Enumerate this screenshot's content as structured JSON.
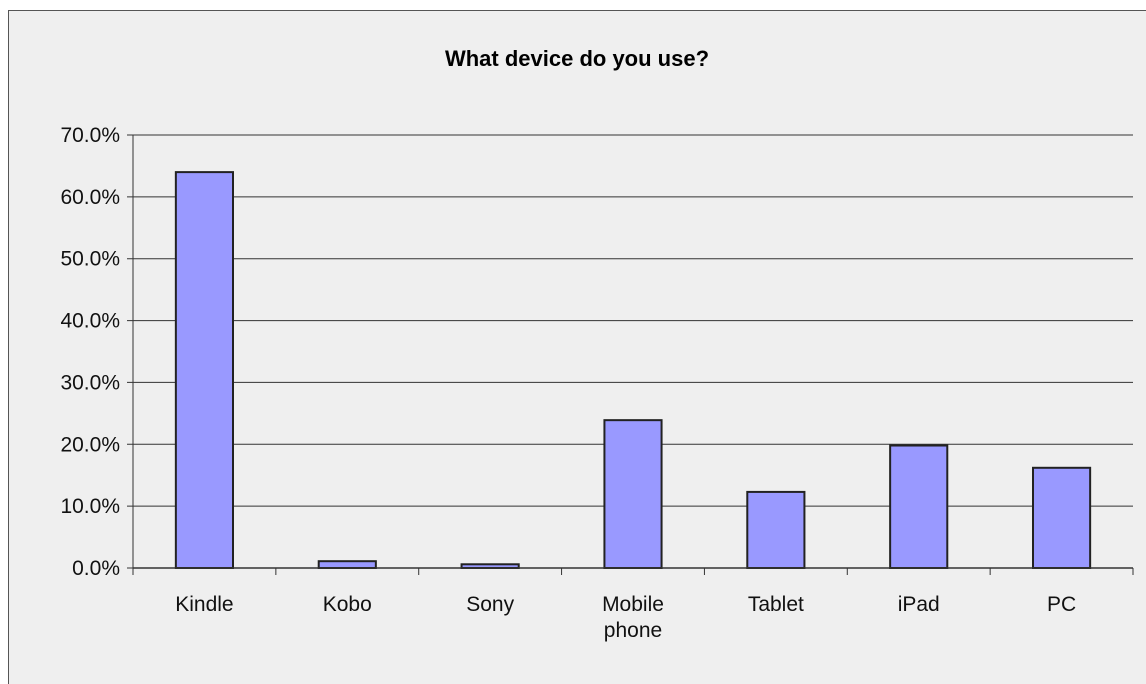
{
  "chart_data": {
    "type": "bar",
    "title": "What device do you use?",
    "xlabel": "",
    "ylabel": "",
    "categories": [
      [
        "Kindle"
      ],
      [
        "Kobo"
      ],
      [
        "Sony"
      ],
      [
        "Mobile",
        "phone"
      ],
      [
        "Tablet"
      ],
      [
        "iPad"
      ],
      [
        "PC"
      ]
    ],
    "values": [
      64.0,
      1.1,
      0.6,
      23.9,
      12.3,
      19.8,
      16.2
    ],
    "ylim": [
      0,
      70
    ],
    "yticks": [
      "0.0%",
      "10.0%",
      "20.0%",
      "30.0%",
      "40.0%",
      "50.0%",
      "60.0%",
      "70.0%"
    ],
    "grid": true,
    "legend": "none",
    "colors": {
      "bar_fill": "#9999ff",
      "bar_stroke": "#222222",
      "grid": "#333333",
      "background": "#efefef"
    }
  }
}
